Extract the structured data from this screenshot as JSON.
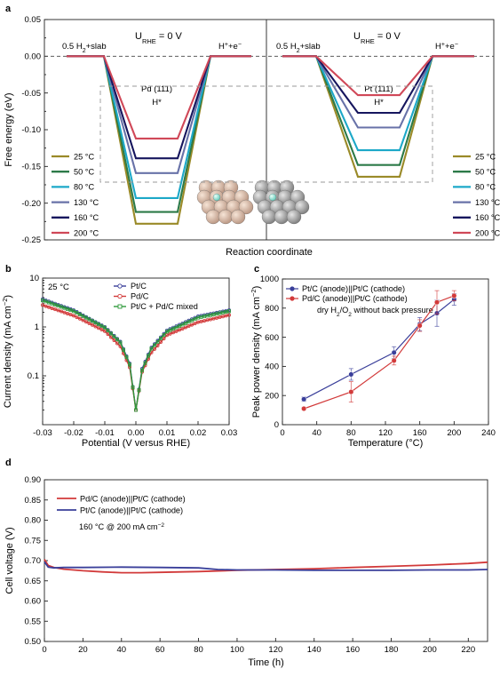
{
  "panel_labels": [
    "a",
    "b",
    "c",
    "d"
  ],
  "chart_data": [
    {
      "id": "a",
      "type": "line",
      "ylabel": "Free energy (eV)",
      "xlabel": "Reaction coordinate",
      "ylim": [
        -0.25,
        0.05
      ],
      "yticks": [
        "0.05",
        "0.00",
        "-0.05",
        "-0.10",
        "-0.15",
        "-0.20",
        "-0.25"
      ],
      "states": [
        "0.5 H2+slab",
        "H*",
        "H+ + e−"
      ],
      "state_labels": {
        "left": "0.5 H",
        "left_sub": "2",
        "left_tail": "+slab",
        "right": "H",
        "right_sup": "+",
        "right_tail": "+e",
        "right_sup2": "−"
      },
      "potential_label": {
        "main": "U",
        "sub": "RHE",
        "tail": " = 0 V"
      },
      "series_names": [
        "25 °C",
        "50 °C",
        "80 °C",
        "130 °C",
        "160 °C",
        "200 °C"
      ],
      "colors": [
        "#9a8a28",
        "#2c7a48",
        "#1ca8c8",
        "#6872a8",
        "#16165e",
        "#d04858"
      ],
      "subpanels": [
        {
          "surface": "Pd (111)",
          "adsorbate": "H*",
          "values": [
            -0.228,
            -0.212,
            -0.193,
            -0.159,
            -0.139,
            -0.112
          ]
        },
        {
          "surface": "Pt (111)",
          "adsorbate": "H*",
          "values": [
            -0.164,
            -0.148,
            -0.128,
            -0.097,
            -0.077,
            -0.053
          ]
        }
      ]
    },
    {
      "id": "b",
      "type": "line",
      "xlabel": "Potential (V versus RHE)",
      "ylabel": "Current density (mA cm",
      "ylabel_sup": "−2",
      "ylabel_tail": ")",
      "xlim": [
        -0.03,
        0.03
      ],
      "ylim": [
        0.01,
        10
      ],
      "yscale": "log",
      "xticks": [
        "-0.03",
        "-0.02",
        "-0.01",
        "0.00",
        "0.01",
        "0.02",
        "0.03"
      ],
      "yticks": [
        "0.1",
        "1",
        "10"
      ],
      "annotation": "25 °C",
      "series": [
        {
          "name": "Pt/C",
          "color": "#3a3f9a",
          "marker": "circle",
          "x": [
            -0.03,
            -0.02,
            -0.01,
            -0.005,
            -0.002,
            0.0,
            0.002,
            0.005,
            0.01,
            0.02,
            0.03
          ],
          "values": [
            3.7,
            2.2,
            1.0,
            0.5,
            0.18,
            0.02,
            0.14,
            0.38,
            0.85,
            1.65,
            2.2
          ]
        },
        {
          "name": "Pd/C",
          "color": "#d23a3a",
          "marker": "circle",
          "x": [
            -0.03,
            -0.02,
            -0.01,
            -0.005,
            -0.002,
            0.0,
            0.002,
            0.005,
            0.01,
            0.02,
            0.03
          ],
          "values": [
            2.8,
            1.7,
            0.82,
            0.4,
            0.15,
            0.02,
            0.12,
            0.3,
            0.68,
            1.25,
            1.75
          ]
        },
        {
          "name": "Pt/C + Pd/C  mixed",
          "color": "#2e9a3a",
          "marker": "square",
          "x": [
            -0.03,
            -0.02,
            -0.01,
            -0.005,
            -0.002,
            0.0,
            0.002,
            0.005,
            0.01,
            0.02,
            0.03
          ],
          "values": [
            3.5,
            2.1,
            0.97,
            0.48,
            0.17,
            0.02,
            0.13,
            0.36,
            0.8,
            1.55,
            2.1
          ]
        }
      ]
    },
    {
      "id": "c",
      "type": "line",
      "xlabel": "Temperature (°C)",
      "ylabel": "Peak power density (mA cm",
      "ylabel_sup": "−2",
      "ylabel_tail": ")",
      "xlim": [
        0,
        240
      ],
      "ylim": [
        0,
        1000
      ],
      "xticks": [
        "0",
        "40",
        "80",
        "120",
        "160",
        "200",
        "240"
      ],
      "yticks": [
        "0",
        "200",
        "400",
        "600",
        "800",
        "1000"
      ],
      "annotation": {
        "pre": "dry H",
        "sub1": "2",
        "mid": "/O",
        "sub2": "2",
        "post": "  without back pressure"
      },
      "series": [
        {
          "name": "Pt/C (anode)||Pt/C (cathode)",
          "color": "#3a3f9a",
          "x": [
            25,
            80,
            130,
            160,
            180,
            200
          ],
          "values": [
            175,
            345,
            495,
            690,
            765,
            860
          ],
          "err": [
            15,
            40,
            40,
            45,
            90,
            40
          ]
        },
        {
          "name": "Pd/C (anode)||Pt/C (cathode)",
          "color": "#d23a3a",
          "x": [
            25,
            80,
            130,
            160,
            180,
            200
          ],
          "values": [
            110,
            225,
            440,
            680,
            840,
            885
          ],
          "err": [
            10,
            70,
            30,
            40,
            80,
            35
          ]
        }
      ]
    },
    {
      "id": "d",
      "type": "line",
      "xlabel": "Time (h)",
      "ylabel": "Cell voltage (V)",
      "xlim": [
        0,
        230
      ],
      "ylim": [
        0.5,
        0.9
      ],
      "xticks": [
        "0",
        "20",
        "40",
        "60",
        "80",
        "100",
        "120",
        "140",
        "160",
        "180",
        "200",
        "220"
      ],
      "yticks": [
        "0.90",
        "0.85",
        "0.80",
        "0.75",
        "0.70",
        "0.65",
        "0.60",
        "0.55",
        "0.50"
      ],
      "annotation": {
        "pre": "160 °C @ 200 mA cm",
        "sup": "−2"
      },
      "series": [
        {
          "name": "Pd/C (anode)||Pt/C (cathode)",
          "color": "#d23a3a",
          "x": [
            0,
            2,
            5,
            10,
            20,
            30,
            40,
            50,
            60,
            80,
            100,
            120,
            140,
            160,
            180,
            200,
            220,
            230
          ],
          "values": [
            0.703,
            0.688,
            0.683,
            0.679,
            0.675,
            0.672,
            0.67,
            0.67,
            0.671,
            0.673,
            0.676,
            0.678,
            0.68,
            0.683,
            0.686,
            0.689,
            0.693,
            0.696
          ]
        },
        {
          "name": "Pt/C (anode)||Pt/C (cathode)",
          "color": "#3a3f9a",
          "x": [
            0,
            2,
            5,
            10,
            20,
            40,
            60,
            80,
            90,
            100,
            120,
            140,
            160,
            180,
            200,
            220,
            230
          ],
          "values": [
            0.697,
            0.684,
            0.682,
            0.683,
            0.683,
            0.684,
            0.683,
            0.682,
            0.678,
            0.677,
            0.677,
            0.676,
            0.676,
            0.676,
            0.677,
            0.677,
            0.678
          ]
        }
      ]
    }
  ]
}
